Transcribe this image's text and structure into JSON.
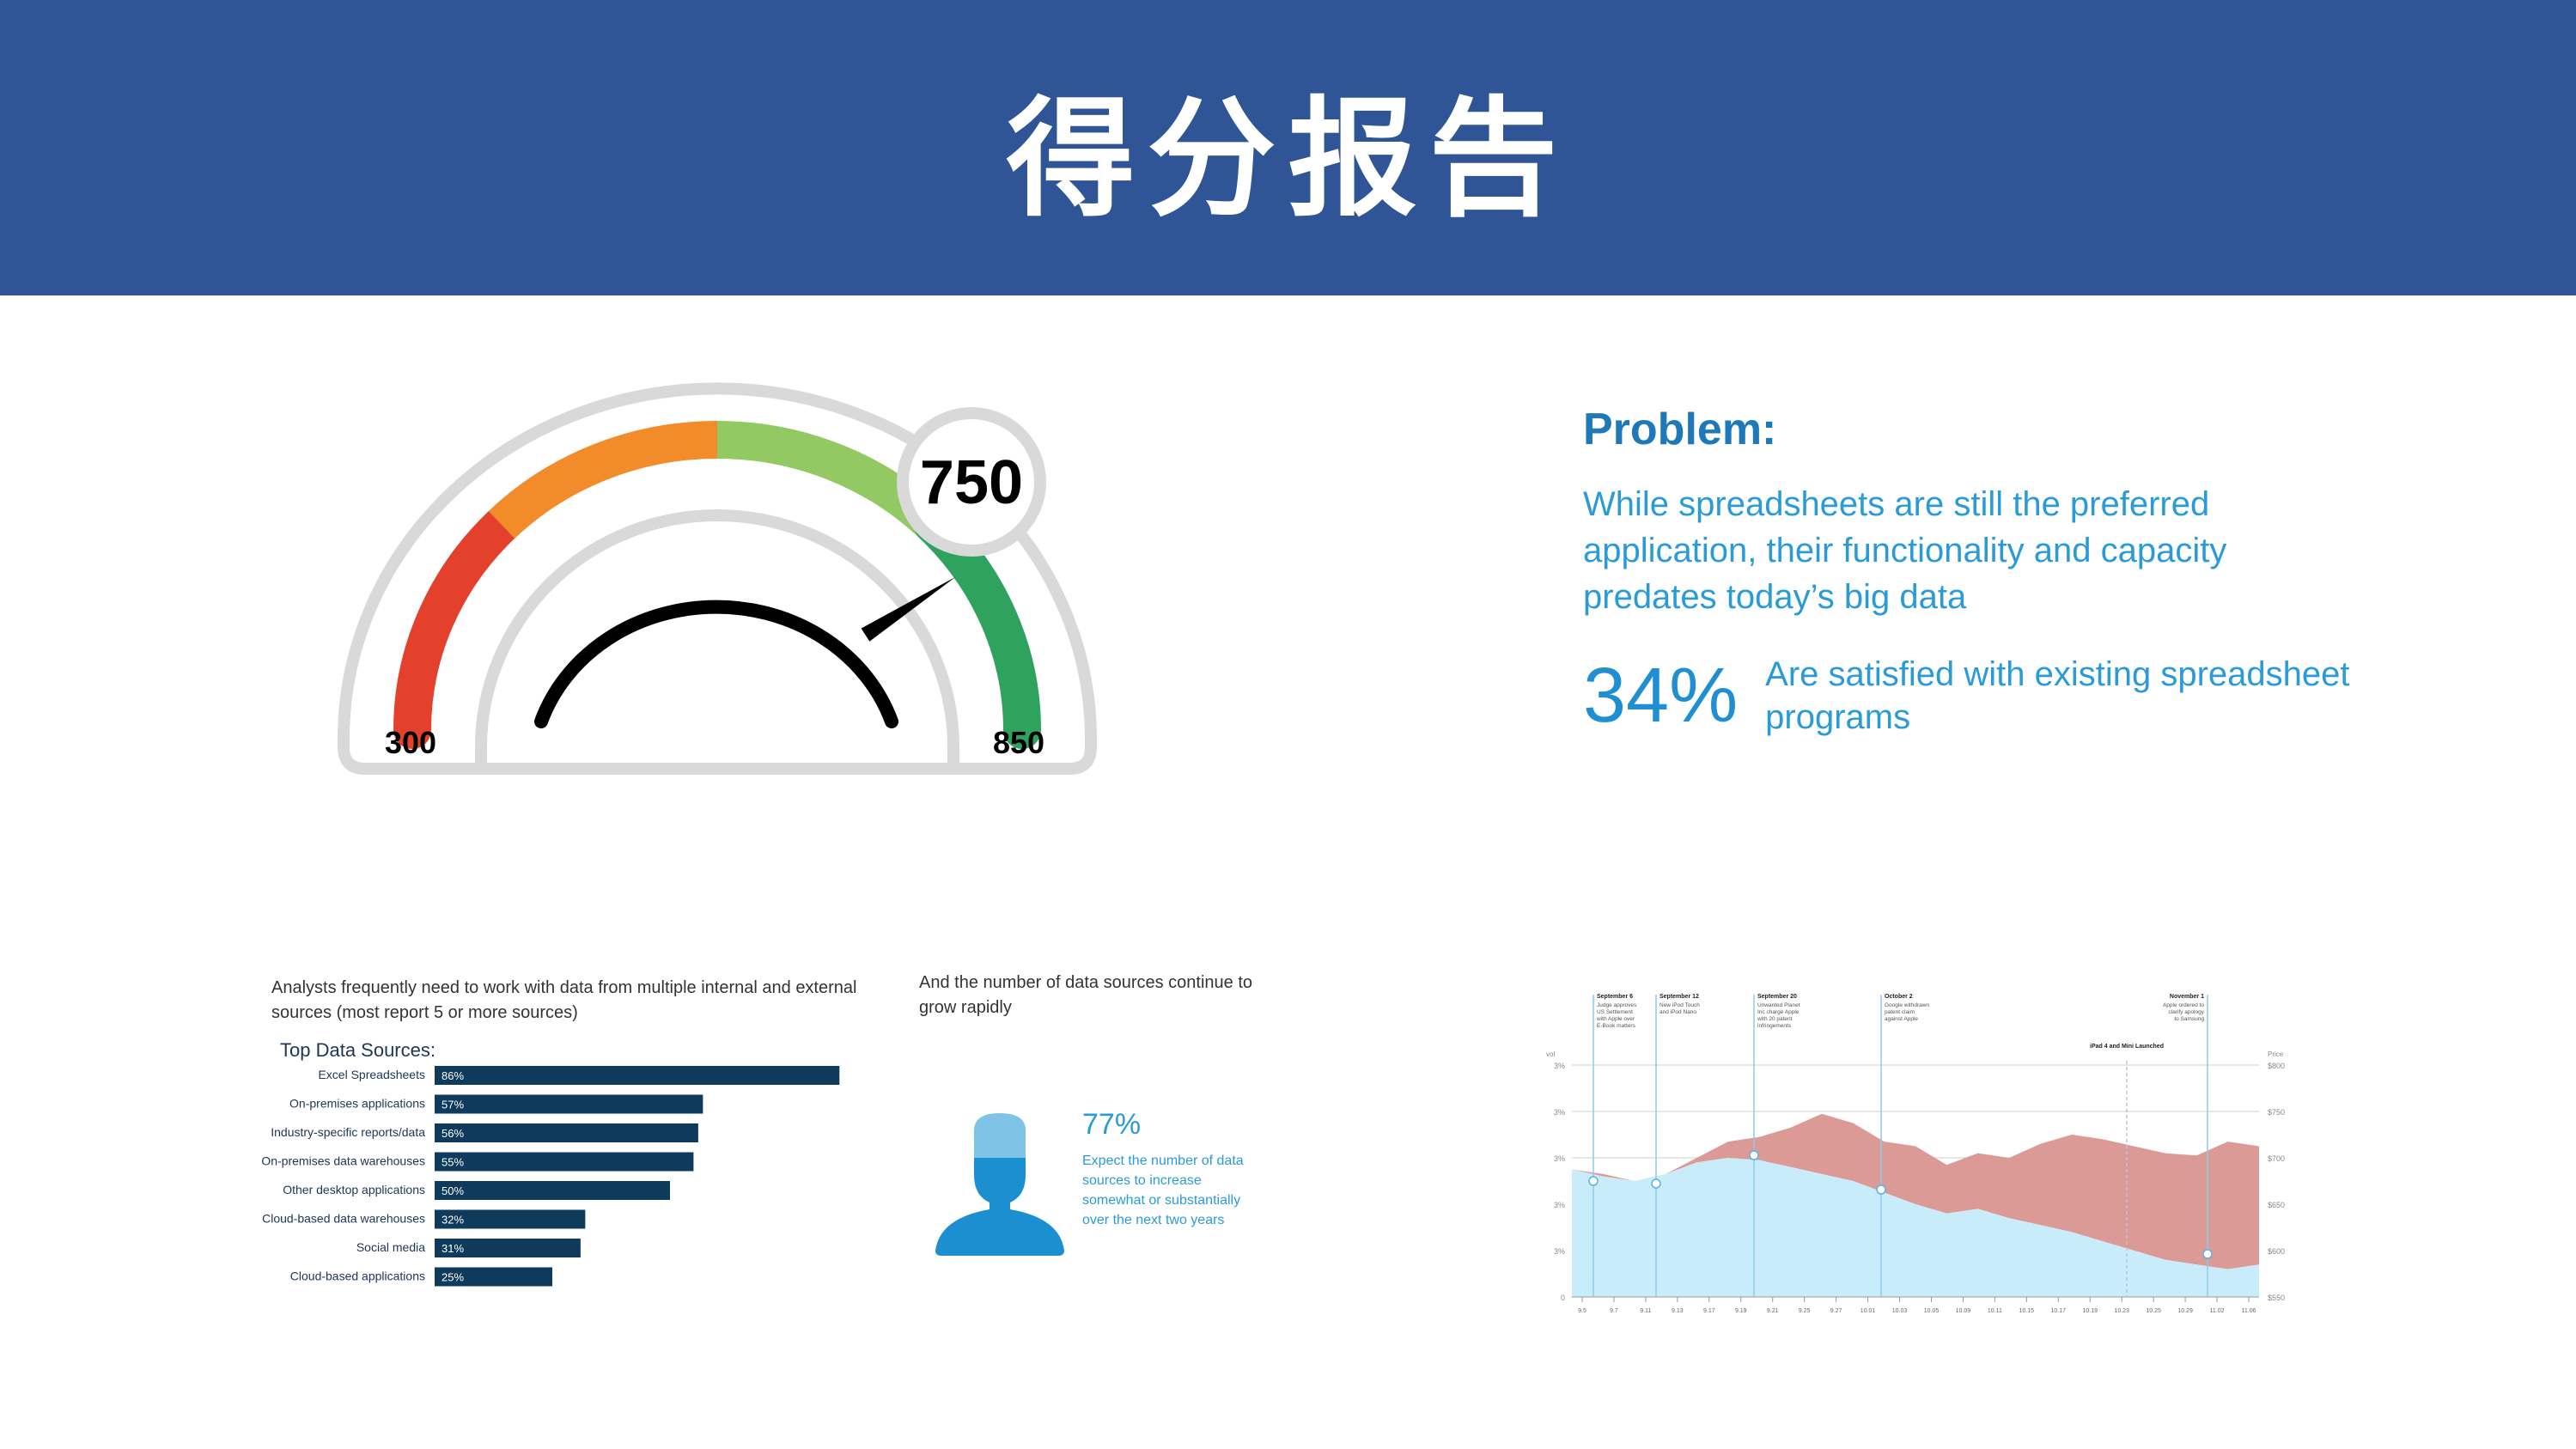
{
  "header": {
    "title": "得分报告"
  },
  "gauge": {
    "score": "750",
    "score_value": 750,
    "min_label": "300",
    "max_label": "850",
    "min": 300,
    "max": 850,
    "colors": {
      "red": "#e3412b",
      "orange": "#f28c2a",
      "lightgreen": "#93c963",
      "green": "#2fa35e",
      "track": "#d9d9d9"
    }
  },
  "problem": {
    "heading": "Problem:",
    "text": "While spreadsheets are still the preferred application, their functionality and capacity predates today’s big data",
    "stat": "34%",
    "stat_text": "Are satisfied with existing spreadsheet programs"
  },
  "analysts": {
    "intro": "Analysts frequently need to work with data from multiple internal and external sources (most report 5 or more sources)",
    "title": "Top Data Sources:",
    "bar_color": "#0e3a5b"
  },
  "sources": {
    "intro": "And the number of data sources continue to grow rapidly",
    "stat": "77%",
    "text": "Expect the number of data sources to increase somewhat or substantially over the next two years"
  },
  "timeline": {
    "left_axis_label": "vol",
    "right_axis_label": "Price",
    "left_ticks": [
      "3%",
      "3%",
      "3%",
      "3%",
      "3%",
      "0"
    ],
    "right_ticks": [
      "$800",
      "$750",
      "$700",
      "$650",
      "$600",
      "$550"
    ],
    "events": [
      {
        "title": "September 6",
        "text": "Judge approves US Settlement with Apple over E-Book matters"
      },
      {
        "title": "September 12",
        "text": "New iPod Touch and iPod Nano"
      },
      {
        "title": "September 20",
        "text": "Unwanted Planet Inc charge Apple with 20 patent infringements"
      },
      {
        "title": "October 2",
        "text": "Google withdrawn patent claim against Apple"
      },
      {
        "title": "iPad 4 and Mini Launched",
        "text": ""
      },
      {
        "title": "November 1",
        "text": "Apple ordered to clarify apology to Samsung"
      }
    ],
    "x_ticks": [
      "9.5",
      "9.7",
      "9.11",
      "9.13",
      "9.17",
      "9.19",
      "9.21",
      "9.25",
      "9.27",
      "10.01",
      "10.03",
      "10.05",
      "10.09",
      "10.11",
      "10.15",
      "10.17",
      "10.19",
      "10.23",
      "10.25",
      "10.29",
      "11.02",
      "11.06"
    ],
    "colors": {
      "area_blue": "#c9ecfb",
      "area_red": "#dc9a97",
      "line": "#8dcbe9"
    }
  },
  "chart_data": [
    {
      "type": "bar",
      "title": "Top Data Sources:",
      "categories": [
        "Excel Spreadsheets",
        "On-premises applications",
        "Industry-specific reports/data",
        "On-premises data warehouses",
        "Other desktop applications",
        "Cloud-based data warehouses",
        "Social media",
        "Cloud-based applications"
      ],
      "values": [
        86,
        57,
        56,
        55,
        50,
        32,
        31,
        25
      ],
      "value_labels": [
        "86%",
        "57%",
        "56%",
        "55%",
        "50%",
        "32%",
        "31%",
        "25%"
      ],
      "xlim": [
        0,
        100
      ]
    }
  ]
}
